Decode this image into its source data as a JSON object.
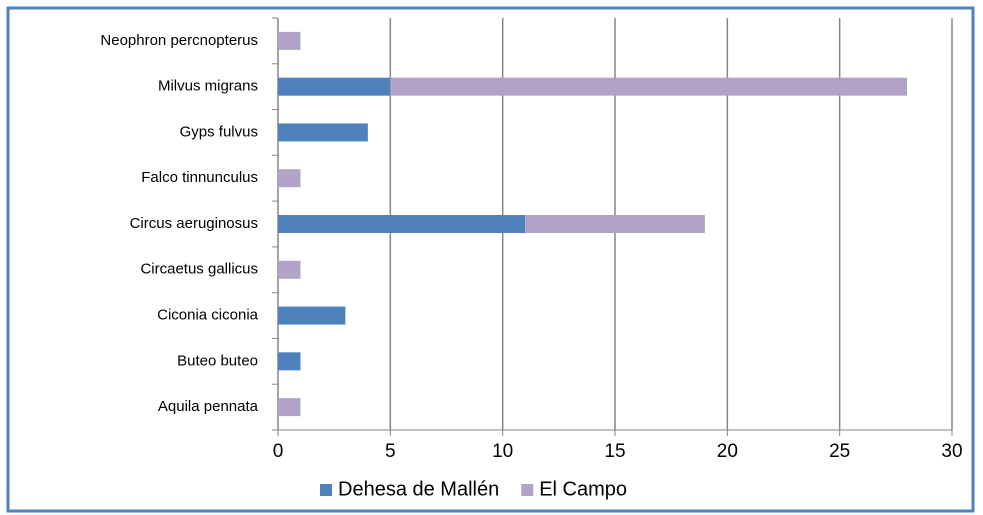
{
  "chart_data": {
    "type": "bar",
    "orientation": "horizontal",
    "stacked": true,
    "categories": [
      "Neophron percnopterus",
      "Milvus migrans",
      "Gyps fulvus",
      "Falco tinnunculus",
      "Circus aeruginosus",
      "Circaetus gallicus",
      "Ciconia ciconia",
      "Buteo buteo",
      "Aquila pennata"
    ],
    "series": [
      {
        "name": "Dehesa de Mallén",
        "color": "#4f81bd",
        "values": [
          0,
          5,
          4,
          0,
          11,
          0,
          3,
          1,
          0
        ]
      },
      {
        "name": "El Campo",
        "color": "#b3a2c7",
        "values": [
          1,
          23,
          0,
          1,
          8,
          1,
          0,
          0,
          1
        ]
      }
    ],
    "xlim": [
      0,
      30
    ],
    "xticks": [
      0,
      5,
      10,
      15,
      20,
      25,
      30
    ],
    "grid": true,
    "legend": "bottom"
  }
}
